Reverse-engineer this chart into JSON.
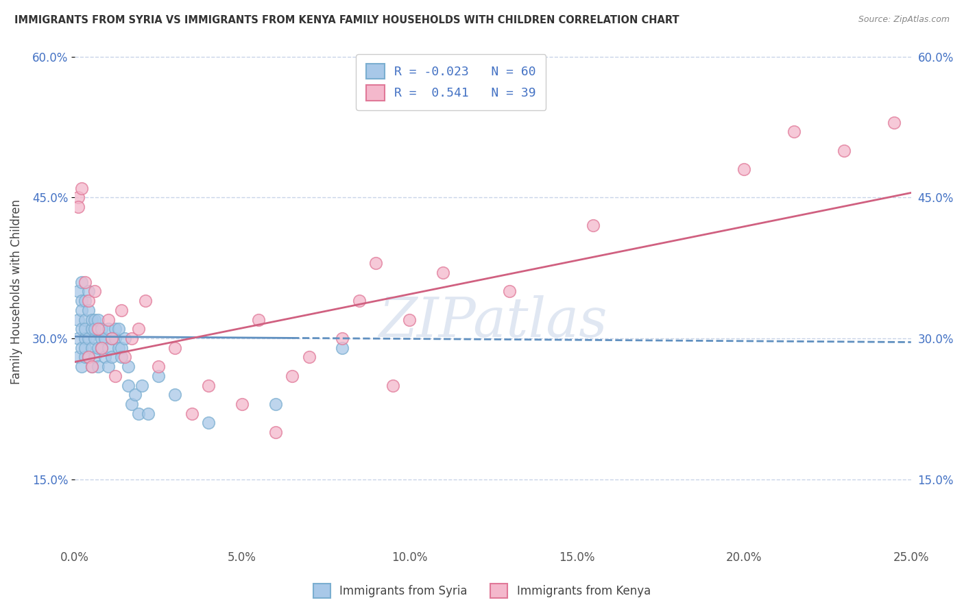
{
  "title": "IMMIGRANTS FROM SYRIA VS IMMIGRANTS FROM KENYA FAMILY HOUSEHOLDS WITH CHILDREN CORRELATION CHART",
  "source": "Source: ZipAtlas.com",
  "xlabel": "",
  "ylabel": "Family Households with Children",
  "legend_labels": [
    "Immigrants from Syria",
    "Immigrants from Kenya"
  ],
  "r_syria": -0.023,
  "n_syria": 60,
  "r_kenya": 0.541,
  "n_kenya": 39,
  "xlim": [
    0.0,
    0.25
  ],
  "ylim": [
    0.08,
    0.62
  ],
  "xticks": [
    0.0,
    0.05,
    0.1,
    0.15,
    0.2,
    0.25
  ],
  "yticks": [
    0.15,
    0.3,
    0.45,
    0.6
  ],
  "ytick_labels": [
    "15.0%",
    "30.0%",
    "45.0%",
    "60.0%"
  ],
  "xtick_labels": [
    "0.0%",
    "5.0%",
    "10.0%",
    "15.0%",
    "20.0%",
    "25.0%"
  ],
  "color_syria": "#a8c8e8",
  "color_kenya": "#f4b8cc",
  "edge_color_syria": "#7aaed0",
  "edge_color_kenya": "#e07898",
  "line_color_syria": "#6090c0",
  "line_color_kenya": "#d06080",
  "background_color": "#ffffff",
  "grid_color": "#c8d4e8",
  "watermark": "ZIPatlas",
  "syria_x": [
    0.001,
    0.001,
    0.001,
    0.001,
    0.002,
    0.002,
    0.002,
    0.002,
    0.002,
    0.002,
    0.003,
    0.003,
    0.003,
    0.003,
    0.003,
    0.003,
    0.004,
    0.004,
    0.004,
    0.004,
    0.005,
    0.005,
    0.005,
    0.005,
    0.006,
    0.006,
    0.006,
    0.006,
    0.007,
    0.007,
    0.007,
    0.008,
    0.008,
    0.008,
    0.009,
    0.009,
    0.01,
    0.01,
    0.01,
    0.011,
    0.011,
    0.012,
    0.012,
    0.013,
    0.013,
    0.014,
    0.014,
    0.015,
    0.016,
    0.016,
    0.017,
    0.018,
    0.019,
    0.02,
    0.022,
    0.025,
    0.03,
    0.04,
    0.06,
    0.08
  ],
  "syria_y": [
    0.3,
    0.32,
    0.28,
    0.35,
    0.36,
    0.34,
    0.29,
    0.31,
    0.33,
    0.27,
    0.3,
    0.32,
    0.28,
    0.34,
    0.29,
    0.31,
    0.3,
    0.33,
    0.28,
    0.35,
    0.31,
    0.29,
    0.32,
    0.27,
    0.3,
    0.32,
    0.28,
    0.31,
    0.29,
    0.32,
    0.27,
    0.3,
    0.29,
    0.31,
    0.28,
    0.3,
    0.29,
    0.31,
    0.27,
    0.3,
    0.28,
    0.31,
    0.3,
    0.29,
    0.31,
    0.29,
    0.28,
    0.3,
    0.25,
    0.27,
    0.23,
    0.24,
    0.22,
    0.25,
    0.22,
    0.26,
    0.24,
    0.21,
    0.23,
    0.29
  ],
  "kenya_x": [
    0.001,
    0.001,
    0.002,
    0.003,
    0.004,
    0.004,
    0.005,
    0.006,
    0.007,
    0.008,
    0.01,
    0.011,
    0.012,
    0.014,
    0.015,
    0.017,
    0.019,
    0.021,
    0.025,
    0.03,
    0.035,
    0.04,
    0.05,
    0.055,
    0.06,
    0.065,
    0.07,
    0.08,
    0.085,
    0.09,
    0.095,
    0.1,
    0.11,
    0.13,
    0.155,
    0.2,
    0.215,
    0.23,
    0.245
  ],
  "kenya_y": [
    0.45,
    0.44,
    0.46,
    0.36,
    0.28,
    0.34,
    0.27,
    0.35,
    0.31,
    0.29,
    0.32,
    0.3,
    0.26,
    0.33,
    0.28,
    0.3,
    0.31,
    0.34,
    0.27,
    0.29,
    0.22,
    0.25,
    0.23,
    0.32,
    0.2,
    0.26,
    0.28,
    0.3,
    0.34,
    0.38,
    0.25,
    0.32,
    0.37,
    0.35,
    0.42,
    0.48,
    0.52,
    0.5,
    0.53
  ],
  "syria_trendline_x": [
    0.0,
    0.25
  ],
  "syria_trendline_y": [
    0.302,
    0.296
  ],
  "kenya_trendline_x": [
    0.0,
    0.25
  ],
  "kenya_trendline_y": [
    0.275,
    0.455
  ]
}
